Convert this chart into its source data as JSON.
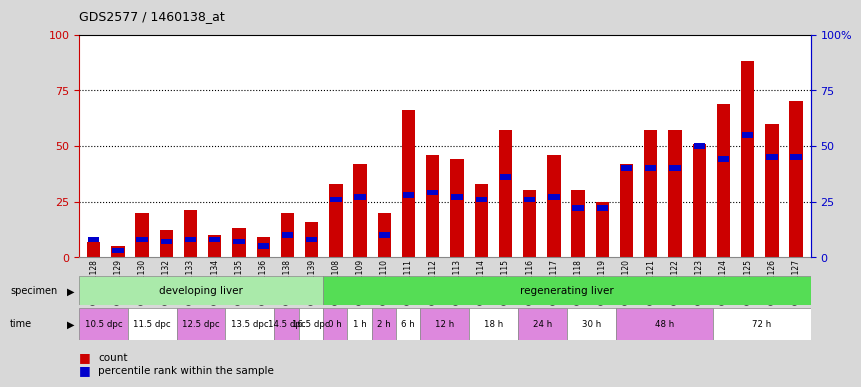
{
  "title": "GDS2577 / 1460138_at",
  "gsm_labels": [
    "GSM161128",
    "GSM161129",
    "GSM161130",
    "GSM161132",
    "GSM161133",
    "GSM161134",
    "GSM161135",
    "GSM161136",
    "GSM161138",
    "GSM161139",
    "GSM161108",
    "GSM161109",
    "GSM161110",
    "GSM161111",
    "GSM161112",
    "GSM161113",
    "GSM161114",
    "GSM161115",
    "GSM161116",
    "GSM161117",
    "GSM161118",
    "GSM161119",
    "GSM161120",
    "GSM161121",
    "GSM161122",
    "GSM161123",
    "GSM161124",
    "GSM161125",
    "GSM161126",
    "GSM161127"
  ],
  "count_values": [
    7,
    5,
    20,
    12,
    21,
    10,
    13,
    9,
    20,
    16,
    33,
    42,
    20,
    66,
    46,
    44,
    33,
    57,
    30,
    46,
    30,
    25,
    42,
    57,
    57,
    51,
    69,
    88,
    60,
    70
  ],
  "percentile_values": [
    8,
    3,
    8,
    7,
    8,
    8,
    7,
    5,
    10,
    8,
    26,
    27,
    10,
    28,
    29,
    27,
    26,
    36,
    26,
    27,
    22,
    22,
    40,
    40,
    40,
    50,
    44,
    55,
    45,
    45
  ],
  "bar_color_red": "#cc0000",
  "bar_color_blue": "#0000cc",
  "background_color": "#d8d8d8",
  "plot_bg_color": "#ffffff",
  "ylim": [
    0,
    100
  ],
  "yticks_left": [
    0,
    25,
    50,
    75,
    100
  ],
  "yticks_right": [
    "0",
    "25",
    "50",
    "75",
    "100%"
  ],
  "grid_values": [
    25,
    50,
    75
  ],
  "specimen_groups": [
    {
      "label": "developing liver",
      "start": 0,
      "end": 10,
      "color": "#aaeaaa"
    },
    {
      "label": "regenerating liver",
      "start": 10,
      "end": 30,
      "color": "#55dd55"
    }
  ],
  "time_labels": [
    {
      "label": "10.5 dpc",
      "start": 0,
      "end": 2,
      "alt": false
    },
    {
      "label": "11.5 dpc",
      "start": 2,
      "end": 4,
      "alt": true
    },
    {
      "label": "12.5 dpc",
      "start": 4,
      "end": 6,
      "alt": false
    },
    {
      "label": "13.5 dpc",
      "start": 6,
      "end": 8,
      "alt": true
    },
    {
      "label": "14.5 dpc",
      "start": 8,
      "end": 9,
      "alt": false
    },
    {
      "label": "16.5 dpc",
      "start": 9,
      "end": 10,
      "alt": true
    },
    {
      "label": "0 h",
      "start": 10,
      "end": 11,
      "alt": false
    },
    {
      "label": "1 h",
      "start": 11,
      "end": 12,
      "alt": true
    },
    {
      "label": "2 h",
      "start": 12,
      "end": 13,
      "alt": false
    },
    {
      "label": "6 h",
      "start": 13,
      "end": 14,
      "alt": true
    },
    {
      "label": "12 h",
      "start": 14,
      "end": 16,
      "alt": false
    },
    {
      "label": "18 h",
      "start": 16,
      "end": 18,
      "alt": true
    },
    {
      "label": "24 h",
      "start": 18,
      "end": 20,
      "alt": false
    },
    {
      "label": "30 h",
      "start": 20,
      "end": 22,
      "alt": true
    },
    {
      "label": "48 h",
      "start": 22,
      "end": 26,
      "alt": false
    },
    {
      "label": "72 h",
      "start": 26,
      "end": 30,
      "alt": true
    }
  ],
  "time_bg_color": "#dd88dd",
  "time_alt_color": "#ffffff",
  "left_axis_color": "#cc0000",
  "right_axis_color": "#0000cc",
  "left_label_color": "#cc0000",
  "right_label_color": "#0000cc"
}
